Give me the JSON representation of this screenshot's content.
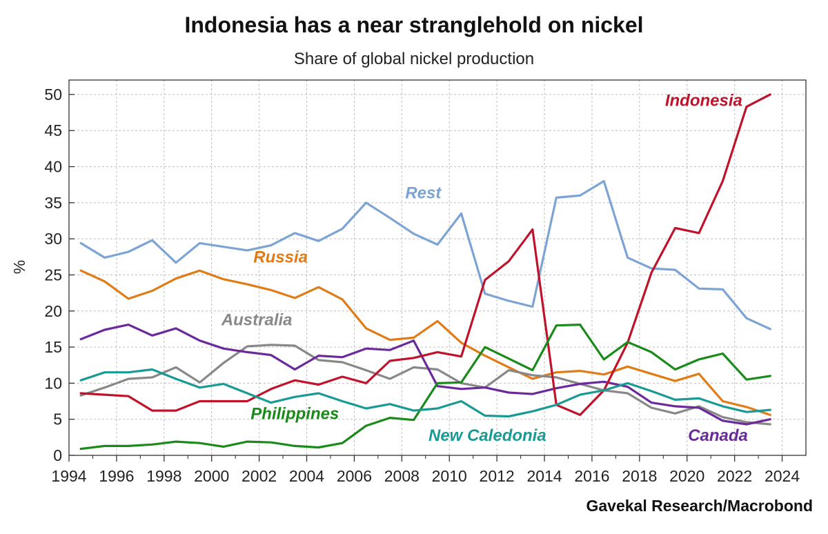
{
  "title": "Indonesia has a near stranglehold on nickel",
  "subtitle": "Share of global nickel production",
  "source": "Gavekal Research/Macrobond",
  "chart_data": {
    "type": "line",
    "title": "Indonesia has a near stranglehold on nickel",
    "subtitle": "Share of global nickel production",
    "xlabel": "",
    "ylabel": "%",
    "xlim": [
      1994,
      2025
    ],
    "ylim": [
      0,
      52
    ],
    "x_ticks": [
      "1994",
      "1996",
      "1998",
      "2000",
      "2002",
      "2004",
      "2006",
      "2008",
      "2010",
      "2012",
      "2014",
      "2016",
      "2018",
      "2020",
      "2022",
      "2024"
    ],
    "y_ticks": [
      "0",
      "5",
      "10",
      "15",
      "20",
      "25",
      "30",
      "35",
      "40",
      "45",
      "50"
    ],
    "grid": true,
    "legend": "inline labels",
    "x": [
      1994.5,
      1995.5,
      1996.5,
      1997.5,
      1998.5,
      1999.5,
      2000.5,
      2001.5,
      2002.5,
      2003.5,
      2004.5,
      2005.5,
      2006.5,
      2007.5,
      2008.5,
      2009.5,
      2010.5,
      2011.5,
      2012.5,
      2013.5,
      2014.5,
      2015.5,
      2016.5,
      2017.5,
      2018.5,
      2019.5,
      2020.5,
      2021.5,
      2022.5,
      2023.5
    ],
    "series": [
      {
        "name": "Rest",
        "color": "#7ba4d4",
        "values": [
          29.4,
          27.4,
          28.2,
          29.8,
          26.7,
          29.4,
          28.9,
          28.4,
          29.1,
          30.8,
          29.7,
          31.4,
          35.0,
          32.9,
          30.7,
          29.2,
          33.5,
          22.4,
          21.4,
          20.6,
          35.7,
          36.0,
          38.0,
          27.4,
          25.9,
          25.7,
          23.1,
          23.0,
          19.0,
          17.5
        ]
      },
      {
        "name": "Russia",
        "color": "#e07b16",
        "values": [
          25.6,
          24.1,
          21.7,
          22.8,
          24.5,
          25.6,
          24.4,
          23.7,
          22.9,
          21.8,
          23.3,
          21.6,
          17.6,
          16.0,
          16.3,
          18.6,
          15.6,
          13.8,
          12.2,
          10.6,
          11.5,
          11.7,
          11.2,
          12.3,
          11.3,
          10.3,
          11.3,
          7.5,
          6.7,
          5.6
        ]
      },
      {
        "name": "Australia",
        "color": "#888888",
        "values": [
          8.3,
          9.4,
          10.6,
          10.8,
          12.2,
          10.1,
          12.8,
          15.1,
          15.3,
          15.2,
          13.2,
          12.9,
          11.8,
          10.6,
          12.2,
          11.9,
          10.0,
          9.4,
          11.8,
          11.1,
          10.8,
          9.9,
          9.0,
          8.6,
          6.6,
          5.8,
          6.8,
          5.3,
          4.6,
          4.3
        ]
      },
      {
        "name": "Canada",
        "color": "#6b2a9c",
        "values": [
          16.1,
          17.4,
          18.1,
          16.6,
          17.6,
          15.9,
          14.8,
          14.3,
          13.9,
          11.9,
          13.8,
          13.6,
          14.8,
          14.6,
          15.9,
          9.6,
          9.2,
          9.4,
          8.7,
          8.5,
          9.3,
          9.9,
          10.2,
          9.5,
          7.3,
          6.8,
          6.6,
          4.8,
          4.3,
          5.0
        ]
      },
      {
        "name": "Indonesia",
        "color": "#c0122a",
        "values": [
          8.6,
          8.4,
          8.2,
          6.2,
          6.2,
          7.5,
          7.5,
          7.5,
          9.2,
          10.4,
          9.8,
          10.9,
          10.0,
          13.1,
          13.5,
          14.3,
          13.7,
          24.3,
          26.9,
          31.3,
          7.0,
          5.6,
          9.0,
          15.6,
          25.3,
          31.5,
          30.8,
          38.0,
          48.3,
          50.0
        ]
      },
      {
        "name": "Philippines",
        "color": "#1a8a1a",
        "values": [
          0.9,
          1.3,
          1.3,
          1.5,
          1.9,
          1.7,
          1.2,
          1.9,
          1.8,
          1.3,
          1.1,
          1.7,
          4.1,
          5.2,
          4.9,
          10.0,
          10.1,
          15.0,
          13.4,
          11.8,
          18.0,
          18.1,
          13.3,
          15.7,
          14.3,
          11.9,
          13.3,
          14.1,
          10.5,
          11.0
        ]
      },
      {
        "name": "New Caledonia",
        "color": "#1a9a95",
        "values": [
          10.4,
          11.5,
          11.5,
          11.9,
          10.6,
          9.4,
          9.9,
          8.6,
          7.3,
          8.1,
          8.6,
          7.5,
          6.5,
          7.1,
          6.2,
          6.5,
          7.5,
          5.5,
          5.4,
          6.1,
          7.0,
          8.4,
          9.0,
          10.0,
          8.9,
          7.7,
          7.9,
          6.8,
          6.0,
          6.3
        ]
      }
    ],
    "annotations": [
      {
        "text": "Rest",
        "series": "Rest",
        "at_x": 2008.9,
        "at_y": 35.6
      },
      {
        "text": "Russia",
        "series": "Russia",
        "at_x": 2002.9,
        "at_y": 26.7
      },
      {
        "text": "Australia",
        "series": "Australia",
        "at_x": 2001.9,
        "at_y": 18.0
      },
      {
        "text": "Indonesia",
        "series": "Indonesia",
        "at_x": 2020.7,
        "at_y": 48.4
      },
      {
        "text": "Philippines",
        "series": "Philippines",
        "at_x": 2003.5,
        "at_y": 5.0
      },
      {
        "text": "New Caledonia",
        "series": "New Caledonia",
        "at_x": 2011.6,
        "at_y": 2.0
      },
      {
        "text": "Canada",
        "series": "Canada",
        "at_x": 2021.3,
        "at_y": 2.0
      }
    ]
  }
}
